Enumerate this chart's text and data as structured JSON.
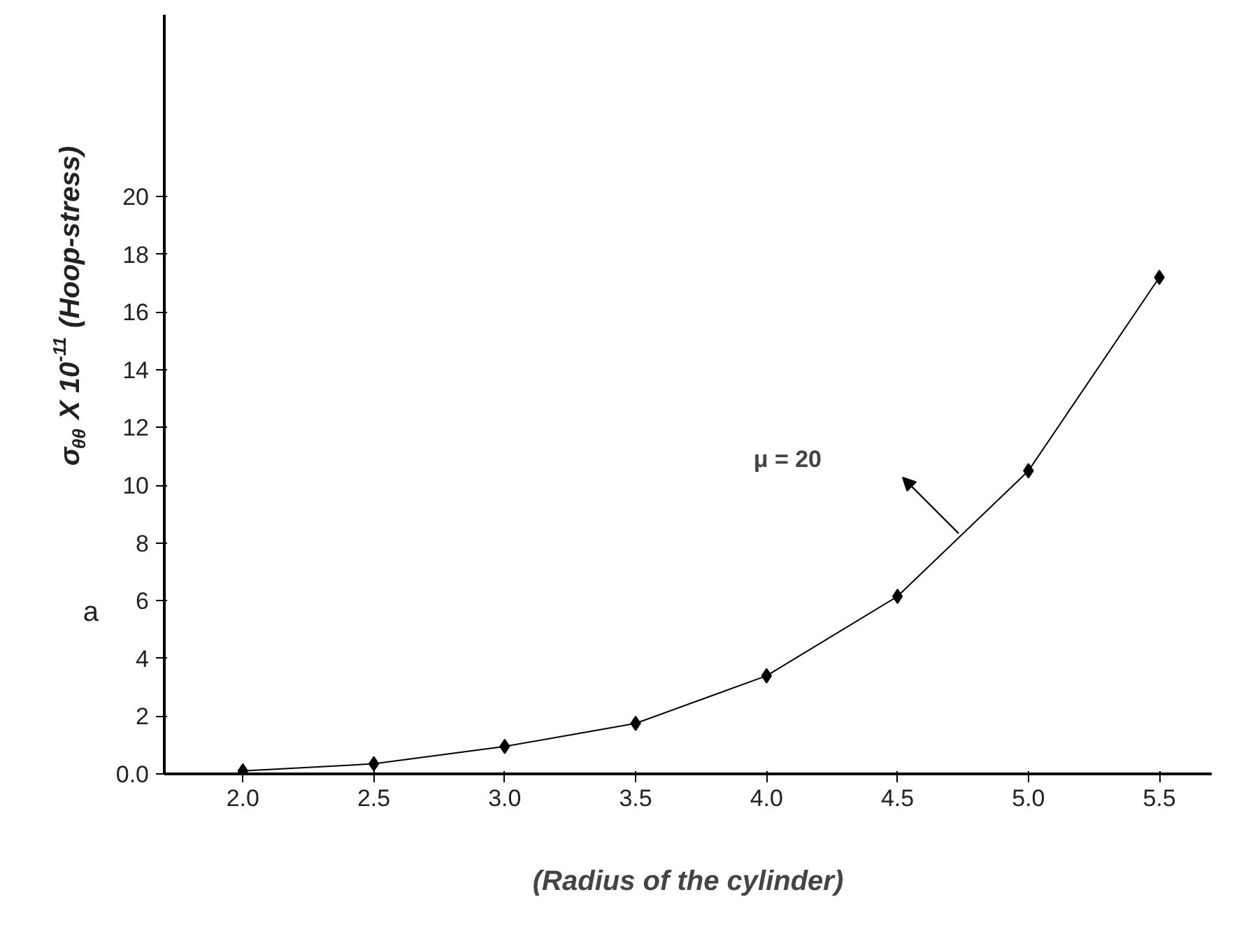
{
  "chart_data": {
    "type": "line",
    "xlabel": "(Radius of the cylinder)",
    "ylabel": "σ$_{θθ}$ X 10$^{-11}$ (Hoop-stress)",
    "x": [
      2.0,
      2.5,
      3.0,
      3.5,
      4.0,
      4.5,
      5.0,
      5.5
    ],
    "series": [
      {
        "color": "#000000",
        "values": [
          0.1,
          0.35,
          0.95,
          1.75,
          3.4,
          6.15,
          10.5,
          17.2
        ]
      }
    ],
    "xlim": [
      1.7,
      5.7
    ],
    "ylim": [
      0,
      26.3
    ],
    "xticks": [
      {
        "value": 2.0,
        "label": "2.0"
      },
      {
        "value": 2.5,
        "label": "2.5"
      },
      {
        "value": 3.0,
        "label": "3.0"
      },
      {
        "value": 3.5,
        "label": "3.5"
      },
      {
        "value": 4.0,
        "label": "4.0"
      },
      {
        "value": 4.5,
        "label": "4.5"
      },
      {
        "value": 5.0,
        "label": "5.0"
      },
      {
        "value": 5.5,
        "label": "5.5"
      }
    ],
    "yticks": [
      {
        "value": 0,
        "label": "0.0"
      },
      2,
      4,
      6,
      8,
      10,
      12,
      14,
      16,
      18,
      20
    ],
    "annotations": [
      "μ = 20",
      "a"
    ],
    "grid": false,
    "marker": "diamond",
    "line_style": "solid"
  }
}
